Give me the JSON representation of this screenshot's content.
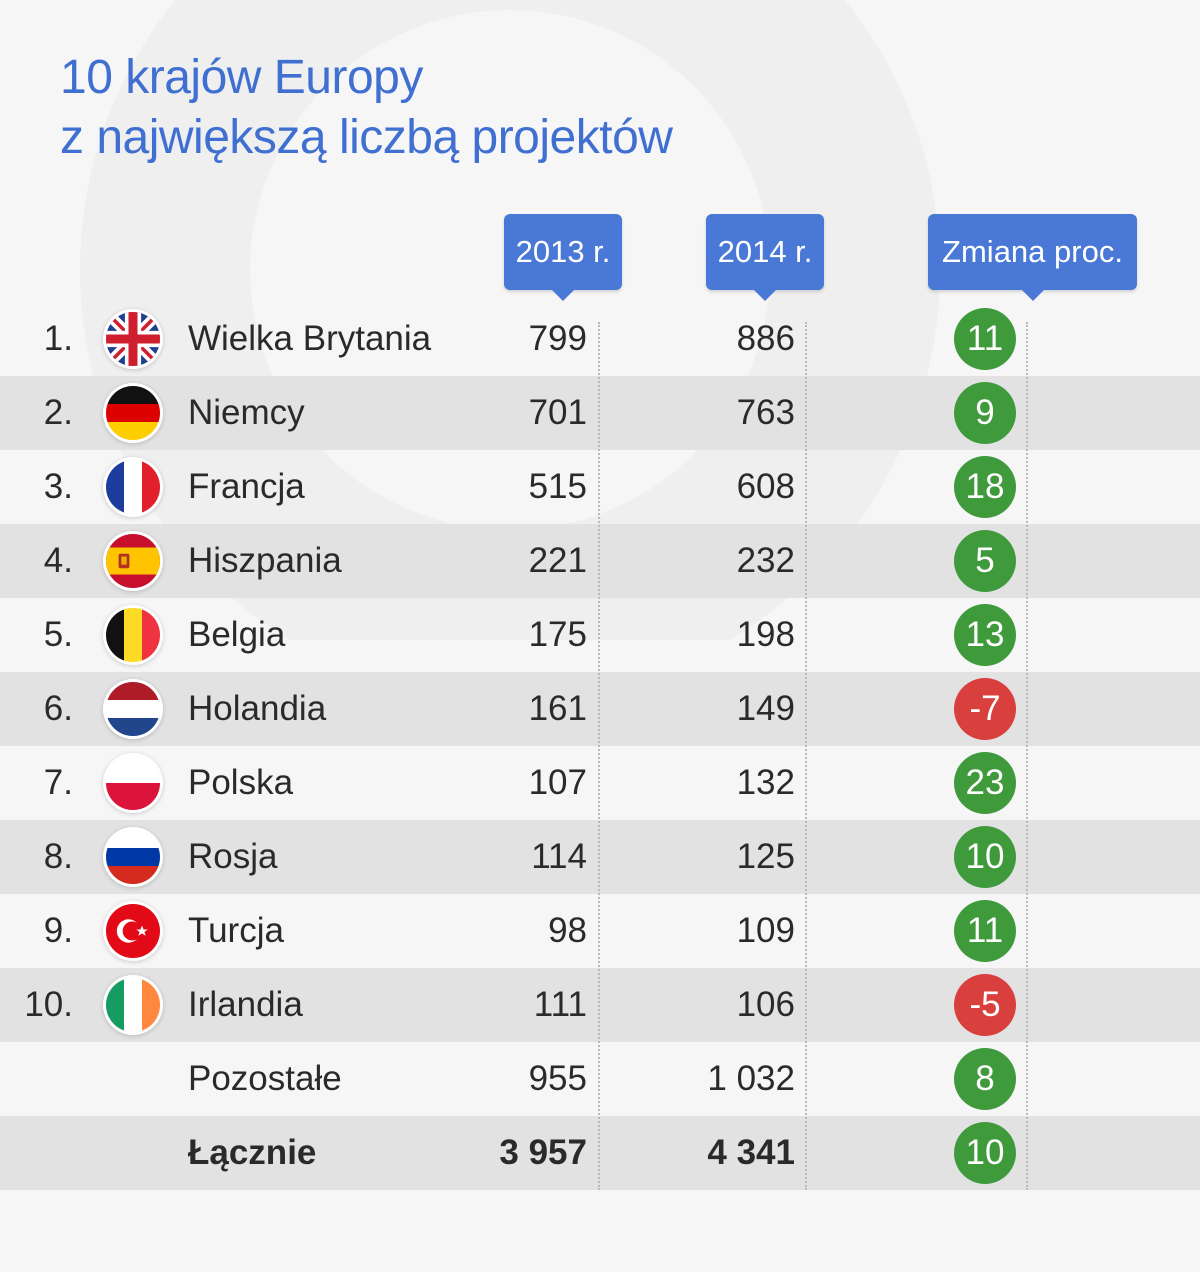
{
  "title": {
    "line1": "10 krajów Europy",
    "line2": "z największą liczbą projektów"
  },
  "headers": {
    "y2013": "2013 r.",
    "y2014": "2014 r.",
    "change": "Zmiana proc."
  },
  "colors": {
    "accent": "#4a78d6",
    "title": "#3f6fd1",
    "positive": "#3f9a3c",
    "negative": "#d9403d",
    "stripe": "#e2e2e2"
  },
  "chart_data": {
    "type": "table",
    "title": "10 krajów Europy z największą liczbą projektów",
    "columns": [
      "",
      "",
      "",
      "2013 r.",
      "2014 r.",
      "Zmiana proc."
    ],
    "rows": [
      {
        "rank": "1.",
        "flag": "uk-flag-icon",
        "country": "Wielka Brytania",
        "y2013": "799",
        "y2014": "886",
        "change": 11
      },
      {
        "rank": "2.",
        "flag": "germany-flag-icon",
        "country": "Niemcy",
        "y2013": "701",
        "y2014": "763",
        "change": 9
      },
      {
        "rank": "3.",
        "flag": "france-flag-icon",
        "country": "Francja",
        "y2013": "515",
        "y2014": "608",
        "change": 18
      },
      {
        "rank": "4.",
        "flag": "spain-flag-icon",
        "country": "Hiszpania",
        "y2013": "221",
        "y2014": "232",
        "change": 5
      },
      {
        "rank": "5.",
        "flag": "belgium-flag-icon",
        "country": "Belgia",
        "y2013": "175",
        "y2014": "198",
        "change": 13
      },
      {
        "rank": "6.",
        "flag": "netherlands-flag-icon",
        "country": "Holandia",
        "y2013": "161",
        "y2014": "149",
        "change": -7
      },
      {
        "rank": "7.",
        "flag": "poland-flag-icon",
        "country": "Polska",
        "y2013": "107",
        "y2014": "132",
        "change": 23
      },
      {
        "rank": "8.",
        "flag": "russia-flag-icon",
        "country": "Rosja",
        "y2013": "114",
        "y2014": "125",
        "change": 10
      },
      {
        "rank": "9.",
        "flag": "turkey-flag-icon",
        "country": "Turcja",
        "y2013": "98",
        "y2014": "109",
        "change": 11
      },
      {
        "rank": "10.",
        "flag": "ireland-flag-icon",
        "country": "Irlandia",
        "y2013": "111",
        "y2014": "106",
        "change": -5
      },
      {
        "rank": "",
        "flag": "",
        "country": "Pozostałe",
        "y2013": "955",
        "y2014": "1 032",
        "change": 8
      },
      {
        "rank": "",
        "flag": "",
        "country": "Łącznie",
        "y2013": "3 957",
        "y2014": "4 341",
        "change": 10,
        "bold": true
      }
    ]
  }
}
